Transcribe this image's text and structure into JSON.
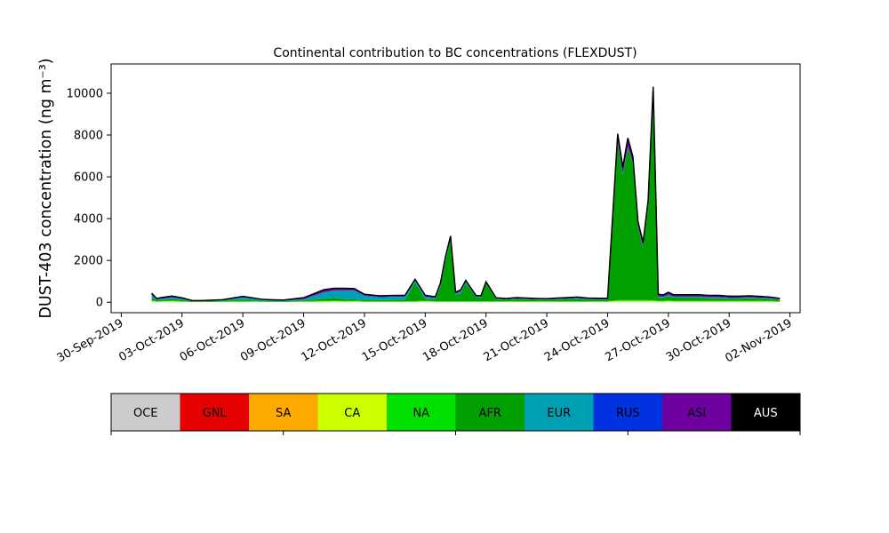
{
  "chart_data": {
    "type": "area",
    "title": "Continental contribution to BC concentrations (FLEXDUST)",
    "ylabel": "DUST-403 concentration (ng m⁻³)",
    "xlabel": "",
    "xlim": [
      "2019-09-29T12:00",
      "2019-11-02T12:00"
    ],
    "ylim": [
      -500,
      11400
    ],
    "y_ticks": [
      0,
      2000,
      4000,
      6000,
      8000,
      10000
    ],
    "x_ticks": [
      {
        "date": "2019-09-30",
        "label": "30-Sep-2019"
      },
      {
        "date": "2019-10-03",
        "label": "03-Oct-2019"
      },
      {
        "date": "2019-10-06",
        "label": "06-Oct-2019"
      },
      {
        "date": "2019-10-09",
        "label": "09-Oct-2019"
      },
      {
        "date": "2019-10-12",
        "label": "12-Oct-2019"
      },
      {
        "date": "2019-10-15",
        "label": "15-Oct-2019"
      },
      {
        "date": "2019-10-18",
        "label": "18-Oct-2019"
      },
      {
        "date": "2019-10-21",
        "label": "21-Oct-2019"
      },
      {
        "date": "2019-10-24",
        "label": "24-Oct-2019"
      },
      {
        "date": "2019-10-27",
        "label": "27-Oct-2019"
      },
      {
        "date": "2019-10-30",
        "label": "30-Oct-2019"
      },
      {
        "date": "2019-11-02",
        "label": "02-Nov-2019"
      }
    ],
    "grid": false,
    "legend": {
      "placement": "bottom",
      "entries": [
        {
          "label": "OCE",
          "color": "#cccccc",
          "text_color": "#000000"
        },
        {
          "label": "GNL",
          "color": "#e60000",
          "text_color": "#000000"
        },
        {
          "label": "SA",
          "color": "#ffaa00",
          "text_color": "#000000"
        },
        {
          "label": "CA",
          "color": "#ccff00",
          "text_color": "#000000"
        },
        {
          "label": "NA",
          "color": "#00e100",
          "text_color": "#000000"
        },
        {
          "label": "AFR",
          "color": "#00a000",
          "text_color": "#000000"
        },
        {
          "label": "EUR",
          "color": "#00a0b4",
          "text_color": "#000000"
        },
        {
          "label": "RUS",
          "color": "#0032e1",
          "text_color": "#000000"
        },
        {
          "label": "ASI",
          "color": "#6e00a0",
          "text_color": "#000000"
        },
        {
          "label": "AUS",
          "color": "#000000",
          "text_color": "#ffffff"
        }
      ]
    },
    "total_line_color": "#000000",
    "x": [
      "2019-10-01T12:00",
      "2019-10-01T18:00",
      "2019-10-02T00:00",
      "2019-10-02T12:00",
      "2019-10-03T00:00",
      "2019-10-03T12:00",
      "2019-10-04T00:00",
      "2019-10-05T00:00",
      "2019-10-06T00:00",
      "2019-10-07T00:00",
      "2019-10-07T12:00",
      "2019-10-08T00:00",
      "2019-10-09T00:00",
      "2019-10-10T00:00",
      "2019-10-10T12:00",
      "2019-10-11T00:00",
      "2019-10-11T12:00",
      "2019-10-12T00:00",
      "2019-10-12T18:00",
      "2019-10-13T12:00",
      "2019-10-14T00:00",
      "2019-10-14T12:00",
      "2019-10-15T00:00",
      "2019-10-15T12:00",
      "2019-10-15T18:00",
      "2019-10-16T00:00",
      "2019-10-16T06:00",
      "2019-10-16T12:00",
      "2019-10-16T18:00",
      "2019-10-17T00:00",
      "2019-10-17T12:00",
      "2019-10-17T18:00",
      "2019-10-18T00:00",
      "2019-10-18T12:00",
      "2019-10-19T00:00",
      "2019-10-19T12:00",
      "2019-10-20T00:00",
      "2019-10-20T12:00",
      "2019-10-21T00:00",
      "2019-10-21T12:00",
      "2019-10-22T00:00",
      "2019-10-22T12:00",
      "2019-10-23T00:00",
      "2019-10-23T12:00",
      "2019-10-24T00:00",
      "2019-10-24T12:00",
      "2019-10-24T18:00",
      "2019-10-25T00:00",
      "2019-10-25T06:00",
      "2019-10-25T12:00",
      "2019-10-25T18:00",
      "2019-10-26T00:00",
      "2019-10-26T06:00",
      "2019-10-26T12:00",
      "2019-10-26T18:00",
      "2019-10-27T00:00",
      "2019-10-27T06:00",
      "2019-10-27T12:00",
      "2019-10-28T00:00",
      "2019-10-28T12:00",
      "2019-10-29T00:00",
      "2019-10-29T12:00",
      "2019-10-30T00:00",
      "2019-10-30T12:00",
      "2019-10-31T00:00",
      "2019-10-31T12:00",
      "2019-11-01T00:00",
      "2019-11-01T12:00"
    ],
    "series": [
      {
        "name": "OCE",
        "values": [
          20,
          10,
          10,
          15,
          10,
          5,
          5,
          5,
          10,
          5,
          5,
          5,
          5,
          10,
          20,
          10,
          15,
          10,
          10,
          10,
          10,
          10,
          15,
          10,
          10,
          10,
          10,
          10,
          10,
          10,
          10,
          10,
          10,
          10,
          10,
          10,
          10,
          10,
          10,
          10,
          10,
          10,
          10,
          10,
          10,
          30,
          30,
          30,
          30,
          30,
          30,
          30,
          30,
          10,
          10,
          20,
          10,
          10,
          10,
          10,
          10,
          10,
          10,
          10,
          10,
          10,
          10,
          5
        ]
      },
      {
        "name": "GNL",
        "values": [
          0,
          0,
          0,
          0,
          0,
          0,
          0,
          0,
          0,
          0,
          0,
          0,
          0,
          0,
          0,
          0,
          0,
          0,
          0,
          0,
          0,
          0,
          0,
          0,
          0,
          0,
          0,
          0,
          0,
          0,
          0,
          0,
          0,
          0,
          0,
          0,
          0,
          0,
          0,
          0,
          0,
          0,
          0,
          0,
          0,
          0,
          0,
          0,
          0,
          0,
          0,
          0,
          0,
          0,
          0,
          0,
          0,
          0,
          0,
          0,
          0,
          0,
          0,
          0,
          0,
          0,
          0,
          0
        ]
      },
      {
        "name": "SA",
        "values": [
          0,
          0,
          0,
          0,
          0,
          0,
          0,
          0,
          0,
          0,
          0,
          0,
          0,
          0,
          0,
          0,
          0,
          0,
          0,
          0,
          0,
          0,
          0,
          0,
          0,
          0,
          0,
          0,
          0,
          0,
          0,
          0,
          0,
          0,
          0,
          0,
          0,
          0,
          0,
          0,
          0,
          0,
          0,
          0,
          0,
          0,
          0,
          0,
          0,
          0,
          0,
          0,
          0,
          0,
          0,
          0,
          0,
          0,
          0,
          0,
          0,
          0,
          0,
          0,
          0,
          0,
          0,
          0
        ]
      },
      {
        "name": "CA",
        "values": [
          40,
          20,
          30,
          40,
          20,
          10,
          10,
          15,
          20,
          15,
          10,
          10,
          20,
          30,
          30,
          30,
          30,
          20,
          20,
          20,
          20,
          20,
          30,
          20,
          20,
          20,
          20,
          20,
          20,
          20,
          20,
          20,
          20,
          20,
          20,
          20,
          20,
          20,
          20,
          20,
          20,
          20,
          20,
          20,
          20,
          40,
          40,
          40,
          40,
          40,
          40,
          40,
          40,
          30,
          30,
          40,
          30,
          30,
          30,
          30,
          30,
          30,
          30,
          30,
          30,
          30,
          30,
          20
        ]
      },
      {
        "name": "NA",
        "values": [
          40,
          20,
          20,
          30,
          20,
          10,
          10,
          15,
          20,
          15,
          10,
          10,
          20,
          30,
          30,
          30,
          30,
          20,
          20,
          20,
          20,
          20,
          30,
          20,
          20,
          20,
          20,
          20,
          20,
          20,
          20,
          20,
          20,
          20,
          20,
          20,
          20,
          20,
          20,
          20,
          20,
          20,
          20,
          20,
          20,
          30,
          30,
          30,
          30,
          30,
          30,
          30,
          30,
          30,
          30,
          40,
          30,
          30,
          30,
          30,
          30,
          30,
          30,
          30,
          30,
          30,
          30,
          20
        ]
      },
      {
        "name": "AFR",
        "values": [
          100,
          40,
          40,
          70,
          60,
          20,
          20,
          30,
          60,
          30,
          20,
          20,
          40,
          100,
          120,
          80,
          60,
          60,
          50,
          60,
          60,
          900,
          80,
          80,
          700,
          1900,
          3000,
          300,
          380,
          850,
          200,
          180,
          850,
          80,
          60,
          80,
          80,
          60,
          50,
          80,
          80,
          100,
          60,
          60,
          60,
          7500,
          6000,
          7300,
          6500,
          3500,
          2500,
          4500,
          9800,
          150,
          140,
          200,
          150,
          150,
          150,
          150,
          120,
          120,
          100,
          100,
          120,
          100,
          80,
          80
        ]
      },
      {
        "name": "EUR",
        "values": [
          150,
          50,
          60,
          70,
          50,
          20,
          20,
          30,
          120,
          40,
          40,
          30,
          60,
          300,
          350,
          400,
          420,
          200,
          140,
          150,
          150,
          80,
          100,
          70,
          100,
          150,
          40,
          50,
          80,
          70,
          20,
          20,
          20,
          30,
          20,
          30,
          20,
          20,
          20,
          20,
          30,
          50,
          40,
          30,
          30,
          30,
          30,
          30,
          30,
          30,
          30,
          30,
          30,
          40,
          40,
          50,
          40,
          40,
          40,
          40,
          40,
          40,
          30,
          30,
          30,
          30,
          30,
          20
        ]
      },
      {
        "name": "RUS",
        "values": [
          30,
          10,
          10,
          20,
          10,
          5,
          5,
          5,
          10,
          10,
          10,
          10,
          10,
          20,
          20,
          20,
          20,
          20,
          20,
          20,
          20,
          20,
          20,
          20,
          20,
          20,
          20,
          20,
          20,
          20,
          20,
          20,
          20,
          20,
          20,
          20,
          20,
          20,
          20,
          20,
          20,
          20,
          20,
          20,
          20,
          30,
          30,
          30,
          30,
          30,
          30,
          30,
          30,
          20,
          20,
          30,
          20,
          20,
          20,
          20,
          20,
          20,
          20,
          20,
          20,
          20,
          20,
          10
        ]
      },
      {
        "name": "ASI",
        "values": [
          50,
          30,
          60,
          50,
          40,
          10,
          10,
          20,
          40,
          20,
          20,
          20,
          60,
          110,
          100,
          100,
          80,
          50,
          50,
          50,
          50,
          50,
          60,
          40,
          50,
          60,
          60,
          60,
          60,
          60,
          40,
          40,
          40,
          30,
          30,
          40,
          30,
          30,
          30,
          30,
          40,
          30,
          30,
          30,
          30,
          400,
          300,
          400,
          300,
          200,
          200,
          200,
          350,
          100,
          80,
          100,
          80,
          80,
          80,
          80,
          80,
          80,
          70,
          70,
          70,
          60,
          50,
          30
        ]
      },
      {
        "name": "AUS",
        "values": [
          0,
          0,
          0,
          0,
          0,
          0,
          0,
          0,
          0,
          0,
          0,
          0,
          0,
          0,
          0,
          0,
          0,
          0,
          0,
          0,
          0,
          0,
          0,
          0,
          0,
          0,
          0,
          0,
          0,
          0,
          0,
          0,
          0,
          0,
          0,
          0,
          0,
          0,
          0,
          0,
          0,
          0,
          0,
          0,
          0,
          0,
          0,
          0,
          0,
          0,
          0,
          0,
          0,
          0,
          0,
          0,
          0,
          0,
          0,
          0,
          0,
          0,
          0,
          0,
          0,
          0,
          0,
          0
        ]
      }
    ]
  }
}
